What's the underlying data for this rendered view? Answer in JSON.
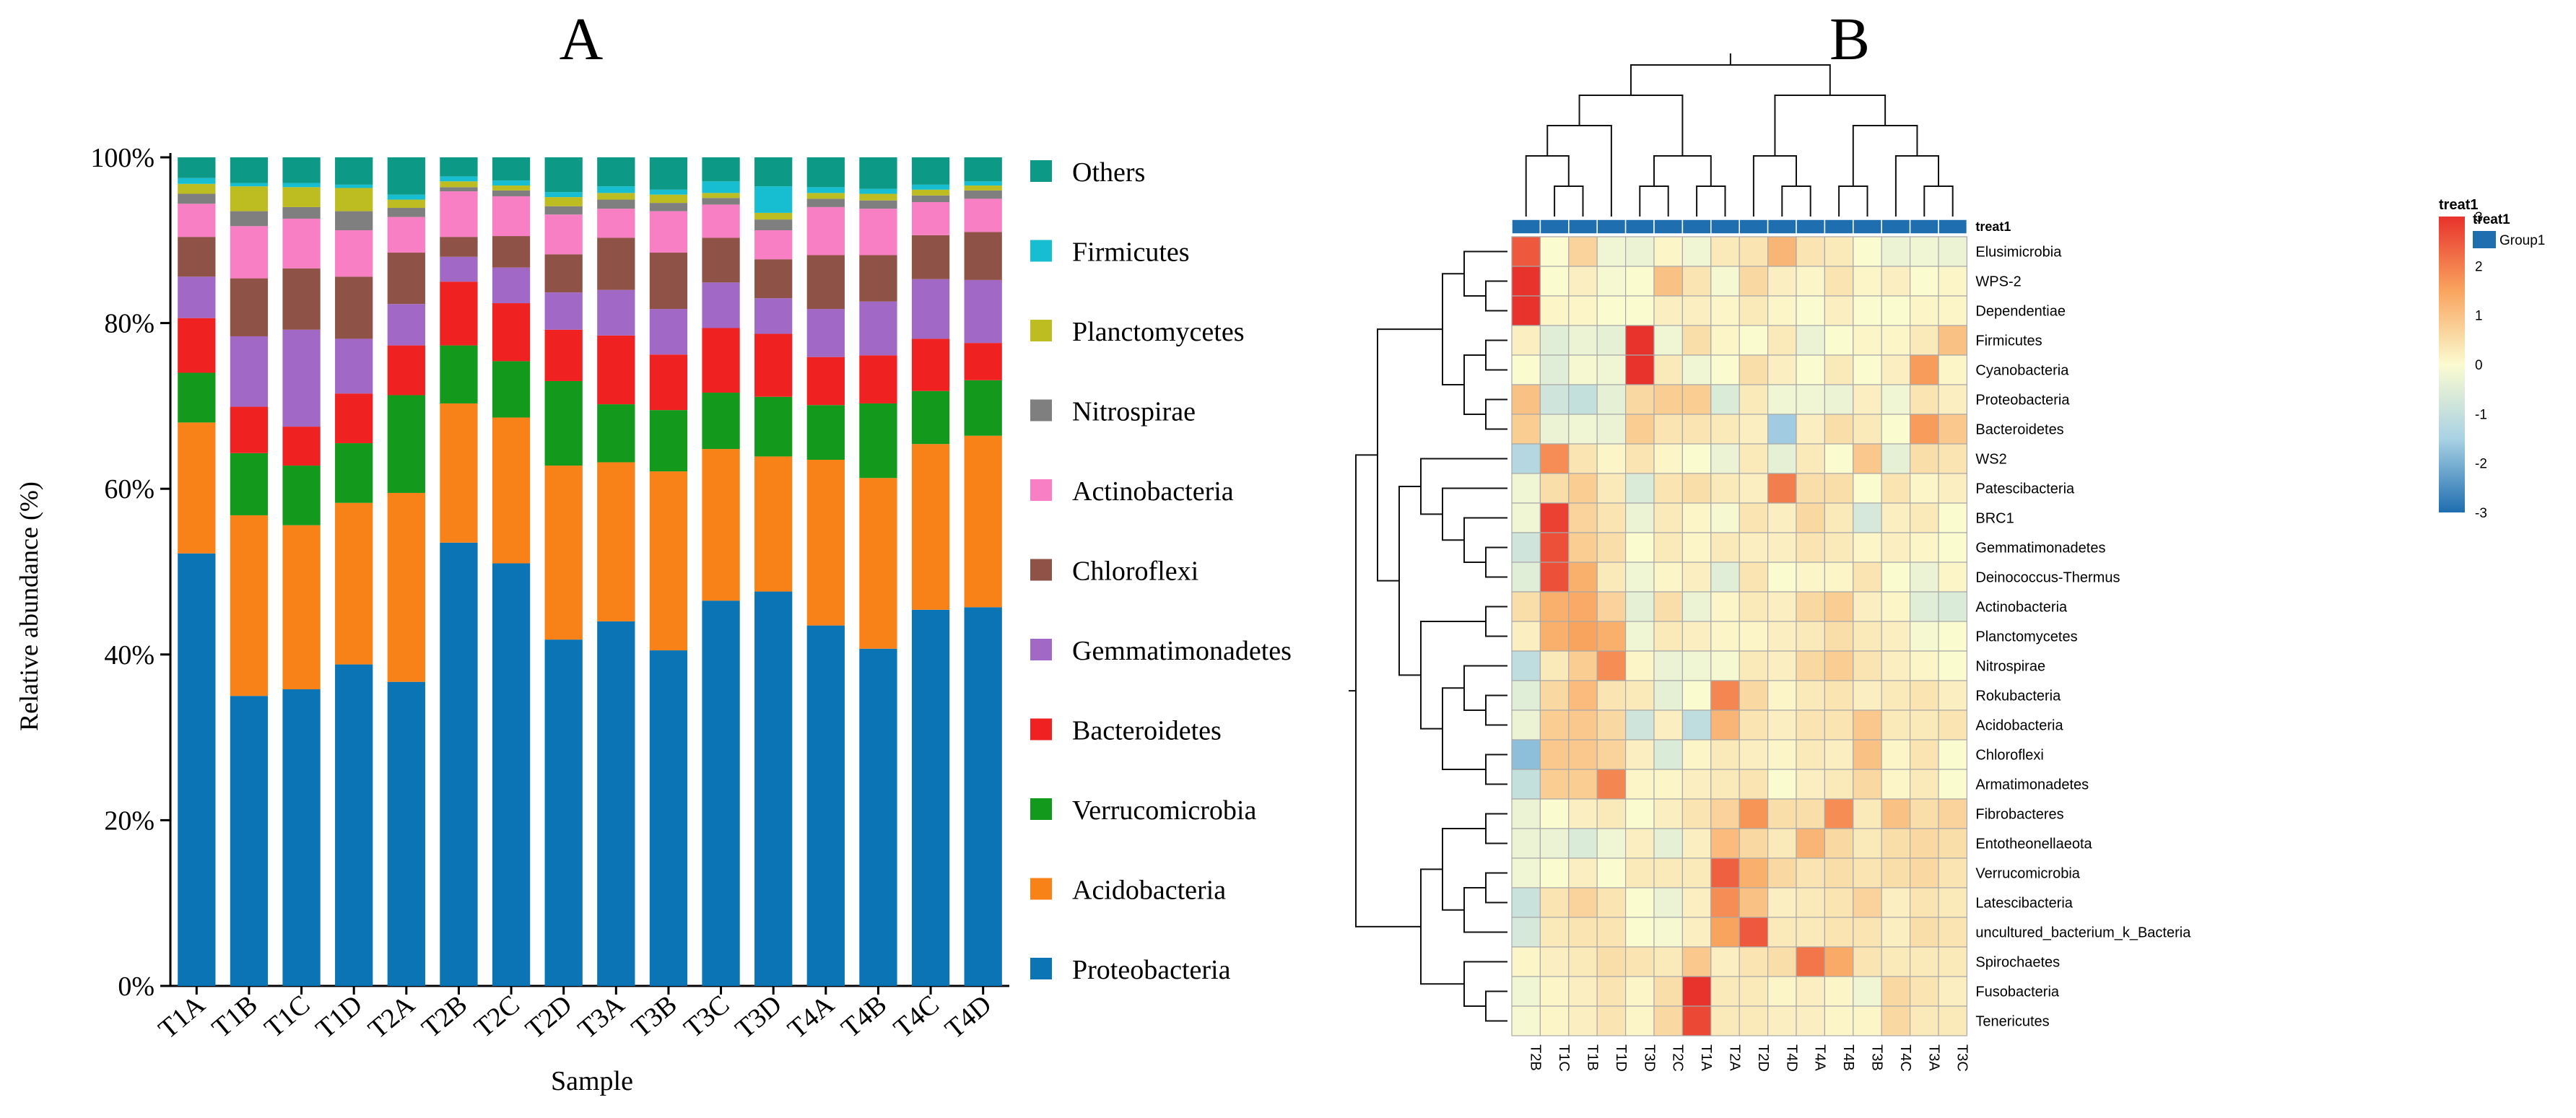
{
  "panel_a_label": "A",
  "panel_b_label": "B",
  "chart_data": [
    {
      "type": "bar",
      "stacked": true,
      "title": "",
      "xlabel": "Sample",
      "ylabel": "Relative abundance (%)",
      "ylim": [
        0,
        100
      ],
      "yticks": [
        "0%",
        "20%",
        "40%",
        "60%",
        "80%",
        "100%"
      ],
      "categories": [
        "T1A",
        "T1B",
        "T1C",
        "T1D",
        "T2A",
        "T2B",
        "T2C",
        "T2D",
        "T3A",
        "T3B",
        "T3C",
        "T3D",
        "T4A",
        "T4B",
        "T4C",
        "T4D"
      ],
      "legend_position": "right",
      "series": [
        {
          "name": "Proteobacteria",
          "color": "#0a74b5",
          "values": [
            52.2,
            35.0,
            35.8,
            38.8,
            36.7,
            53.5,
            51.0,
            41.8,
            44.0,
            40.5,
            46.5,
            47.6,
            43.5,
            40.7,
            45.4,
            45.7
          ]
        },
        {
          "name": "Acidobacteria",
          "color": "#f88218",
          "values": [
            15.8,
            21.8,
            19.8,
            19.5,
            22.8,
            16.8,
            17.6,
            21.0,
            19.2,
            21.6,
            18.3,
            16.3,
            20.0,
            20.6,
            20.0,
            20.7
          ]
        },
        {
          "name": "Verrucomicrobia",
          "color": "#139a1c",
          "values": [
            6.0,
            7.5,
            7.2,
            7.2,
            11.8,
            7.0,
            6.8,
            10.2,
            7.0,
            7.4,
            6.8,
            7.2,
            6.6,
            9.0,
            6.4,
            6.7
          ]
        },
        {
          "name": "Bacteroidetes",
          "color": "#ef2121",
          "values": [
            6.6,
            5.6,
            4.7,
            6.0,
            6.0,
            7.7,
            7.0,
            6.2,
            8.3,
            6.7,
            7.8,
            7.6,
            5.8,
            5.8,
            6.3,
            4.5
          ]
        },
        {
          "name": "Gemmatimonadetes",
          "color": "#a268c5",
          "values": [
            5.0,
            8.5,
            11.7,
            6.6,
            5.0,
            3.0,
            4.3,
            4.5,
            5.5,
            5.5,
            5.5,
            4.3,
            5.8,
            6.5,
            7.2,
            7.6
          ]
        },
        {
          "name": "Chloroflexi",
          "color": "#8f5247",
          "values": [
            4.8,
            7.0,
            7.4,
            7.5,
            6.2,
            2.4,
            3.8,
            4.6,
            6.3,
            6.8,
            5.4,
            4.7,
            6.5,
            5.6,
            5.3,
            5.8
          ]
        },
        {
          "name": "Actinobacteria",
          "color": "#f97fc4",
          "values": [
            4.0,
            6.3,
            6.0,
            5.6,
            4.3,
            5.5,
            4.8,
            4.8,
            3.5,
            5.0,
            4.0,
            3.5,
            5.8,
            5.6,
            4.0,
            4.0
          ]
        },
        {
          "name": "Nitrospirae",
          "color": "#7f7f7f",
          "values": [
            1.2,
            1.8,
            1.4,
            2.3,
            1.1,
            0.5,
            0.7,
            1.0,
            1.1,
            1.0,
            0.8,
            1.3,
            1.0,
            1.0,
            0.8,
            1.0
          ]
        },
        {
          "name": "Planctomycetes",
          "color": "#bdbd22",
          "values": [
            1.2,
            3.0,
            2.4,
            2.8,
            1.0,
            0.7,
            0.6,
            1.1,
            0.8,
            1.0,
            0.6,
            0.8,
            0.7,
            0.8,
            0.7,
            0.6
          ]
        },
        {
          "name": "Firmicutes",
          "color": "#17bdd0",
          "values": [
            0.7,
            0.4,
            0.5,
            0.4,
            0.6,
            0.6,
            0.6,
            0.6,
            0.8,
            0.6,
            1.4,
            3.2,
            0.7,
            0.6,
            0.6,
            0.5
          ]
        },
        {
          "name": "Others",
          "color": "#0c9a86",
          "values": [
            2.5,
            3.1,
            3.1,
            3.3,
            4.5,
            2.3,
            2.8,
            4.2,
            3.5,
            3.9,
            2.9,
            3.5,
            3.6,
            3.8,
            3.3,
            2.9
          ]
        }
      ]
    },
    {
      "type": "heatmap",
      "title": "",
      "columns": [
        "T2B",
        "T1C",
        "T1B",
        "T1D",
        "T3D",
        "T2C",
        "T1A",
        "T2A",
        "T2D",
        "T4D",
        "T4A",
        "T4B",
        "T3B",
        "T4C",
        "T3A",
        "T3C"
      ],
      "rows": [
        "Elusimicrobia",
        "WPS-2",
        "Dependentiae",
        "Firmicutes",
        "Cyanobacteria",
        "Proteobacteria",
        "Bacteroidetes",
        "WS2",
        "Patescibacteria",
        "BRC1",
        "Gemmatimonadetes",
        "Deinococcus-Thermus",
        "Actinobacteria",
        "Planctomycetes",
        "Nitrospirae",
        "Rokubacteria",
        "Acidobacteria",
        "Chloroflexi",
        "Armatimonadetes",
        "Fibrobacteres",
        "Entotheonellaeota",
        "Verrucomicrobia",
        "Latescibacteria",
        "uncultured_bacterium_k_Bacteria",
        "Spirochaetes",
        "Fusobacteria",
        "Tenericutes"
      ],
      "values": [
        [
          2.5,
          0.0,
          0.7,
          -0.2,
          -0.3,
          0.1,
          -0.2,
          0.3,
          0.4,
          1.2,
          0.4,
          0.3,
          0.0,
          -0.3,
          -0.2,
          -0.3
        ],
        [
          3.0,
          0.0,
          0.2,
          -0.1,
          0.0,
          1.0,
          0.4,
          -0.1,
          0.6,
          0.2,
          0.1,
          0.4,
          0.1,
          0.2,
          0.0,
          0.1
        ],
        [
          3.2,
          0.1,
          0.1,
          0.0,
          0.0,
          0.2,
          0.2,
          0.1,
          0.3,
          0.1,
          0.0,
          0.2,
          0.0,
          0.0,
          0.1,
          0.1
        ],
        [
          0.2,
          -0.5,
          -0.3,
          -0.4,
          3.3,
          -0.2,
          0.5,
          0.1,
          0.0,
          0.3,
          -0.3,
          0.0,
          0.1,
          0.1,
          0.3,
          1.0
        ],
        [
          0.0,
          -0.5,
          -0.1,
          -0.2,
          3.0,
          0.3,
          -0.2,
          0.0,
          0.5,
          0.2,
          0.0,
          0.3,
          0.0,
          0.2,
          1.6,
          0.1
        ],
        [
          1.0,
          -0.8,
          -1.0,
          -0.4,
          0.6,
          0.8,
          0.8,
          -0.6,
          0.3,
          -0.2,
          -0.2,
          -0.3,
          0.2,
          -0.2,
          0.4,
          0.2
        ],
        [
          0.8,
          -0.3,
          -0.2,
          -0.3,
          0.8,
          0.4,
          0.4,
          0.3,
          0.2,
          -1.6,
          0.2,
          0.5,
          0.3,
          0.0,
          1.6,
          0.9
        ],
        [
          -1.3,
          1.8,
          0.4,
          0.1,
          0.4,
          0.1,
          0.0,
          -0.3,
          0.3,
          -0.4,
          0.3,
          0.0,
          0.9,
          -0.4,
          0.5,
          0.4
        ],
        [
          -0.2,
          0.5,
          0.8,
          0.3,
          -0.6,
          0.4,
          0.5,
          0.3,
          0.2,
          2.0,
          0.5,
          0.5,
          0.0,
          0.4,
          0.1,
          0.2
        ],
        [
          -0.2,
          2.8,
          0.7,
          0.4,
          -0.3,
          0.3,
          0.1,
          -0.1,
          0.4,
          0.2,
          0.6,
          0.3,
          -0.7,
          0.2,
          0.3,
          0.0
        ],
        [
          -0.8,
          2.6,
          0.8,
          0.5,
          0.0,
          0.3,
          0.1,
          0.3,
          0.2,
          0.2,
          0.4,
          0.3,
          0.1,
          0.2,
          0.1,
          0.0
        ],
        [
          -0.5,
          2.6,
          1.3,
          0.3,
          -0.2,
          0.1,
          0.2,
          -0.5,
          0.4,
          0.0,
          0.1,
          0.1,
          0.4,
          0.0,
          -0.3,
          0.1
        ],
        [
          0.5,
          1.3,
          1.4,
          0.7,
          -0.4,
          0.5,
          -0.3,
          0.1,
          0.3,
          0.2,
          0.6,
          0.8,
          0.2,
          0.1,
          -0.5,
          -0.6
        ],
        [
          0.2,
          1.3,
          1.5,
          1.3,
          -0.2,
          0.3,
          0.2,
          0.1,
          0.1,
          0.2,
          0.3,
          0.5,
          0.3,
          0.2,
          -0.1,
          0.0
        ],
        [
          -1.1,
          0.3,
          0.8,
          1.8,
          0.1,
          -0.3,
          -0.2,
          -0.1,
          0.3,
          0.2,
          0.6,
          0.8,
          0.4,
          0.2,
          0.1,
          0.0
        ],
        [
          -0.5,
          0.6,
          1.1,
          0.4,
          0.3,
          -0.4,
          0.0,
          1.9,
          0.6,
          0.1,
          0.3,
          0.4,
          0.2,
          0.3,
          0.4,
          0.2
        ],
        [
          -0.3,
          0.8,
          0.9,
          0.6,
          -0.8,
          0.2,
          -1.1,
          1.2,
          0.4,
          0.2,
          0.4,
          0.4,
          0.9,
          0.3,
          0.3,
          0.4
        ],
        [
          -1.8,
          0.9,
          0.9,
          0.7,
          0.2,
          -0.6,
          0.1,
          0.3,
          0.2,
          0.1,
          0.3,
          0.2,
          1.0,
          0.1,
          0.4,
          0.0
        ],
        [
          -1.0,
          0.8,
          0.8,
          1.9,
          0.1,
          0.1,
          0.2,
          0.3,
          0.4,
          0.0,
          0.2,
          0.3,
          0.6,
          0.1,
          0.3,
          0.0
        ],
        [
          -0.3,
          0.0,
          0.2,
          0.3,
          0.0,
          0.2,
          0.4,
          0.7,
          1.7,
          0.5,
          0.5,
          1.8,
          0.3,
          1.0,
          0.5,
          0.7
        ],
        [
          -0.3,
          -0.3,
          -0.6,
          -0.2,
          0.2,
          -0.4,
          0.2,
          1.1,
          0.6,
          0.3,
          1.2,
          0.6,
          0.3,
          0.5,
          0.6,
          0.5
        ],
        [
          -0.2,
          0.0,
          0.2,
          0.0,
          0.3,
          0.3,
          0.3,
          2.4,
          1.3,
          0.6,
          0.4,
          0.5,
          0.4,
          0.5,
          0.6,
          0.4
        ],
        [
          -0.9,
          0.4,
          0.7,
          0.4,
          0.0,
          -0.3,
          0.2,
          1.8,
          1.0,
          0.2,
          0.3,
          0.4,
          0.7,
          0.2,
          0.4,
          0.3
        ],
        [
          -0.7,
          0.3,
          0.4,
          0.4,
          0.0,
          -0.1,
          0.2,
          1.5,
          2.5,
          0.3,
          0.3,
          0.4,
          0.4,
          0.2,
          0.5,
          0.4
        ],
        [
          0.1,
          0.2,
          0.3,
          0.5,
          0.4,
          0.3,
          0.9,
          0.2,
          0.4,
          0.5,
          2.1,
          1.4,
          0.4,
          0.3,
          0.3,
          0.3
        ],
        [
          -0.2,
          0.1,
          0.2,
          0.4,
          0.1,
          0.5,
          3.3,
          0.3,
          0.3,
          0.1,
          0.2,
          0.1,
          -0.2,
          0.6,
          0.4,
          0.2
        ],
        [
          -0.1,
          0.1,
          0.2,
          0.4,
          0.1,
          0.6,
          2.7,
          0.3,
          0.3,
          0.2,
          0.2,
          0.1,
          0.1,
          0.6,
          0.3,
          0.3
        ]
      ],
      "color_scale": {
        "min": -3,
        "max": 3,
        "ticks": [
          3,
          2,
          1,
          0,
          -1,
          -2,
          -3
        ],
        "low": "#1f6eb0",
        "mid": "#fbfbd0",
        "high": "#e8322c"
      },
      "annotation": {
        "name": "treat1",
        "group_label": "Group1",
        "color": "#1f6eb0"
      },
      "legend_title": "treat1"
    }
  ]
}
